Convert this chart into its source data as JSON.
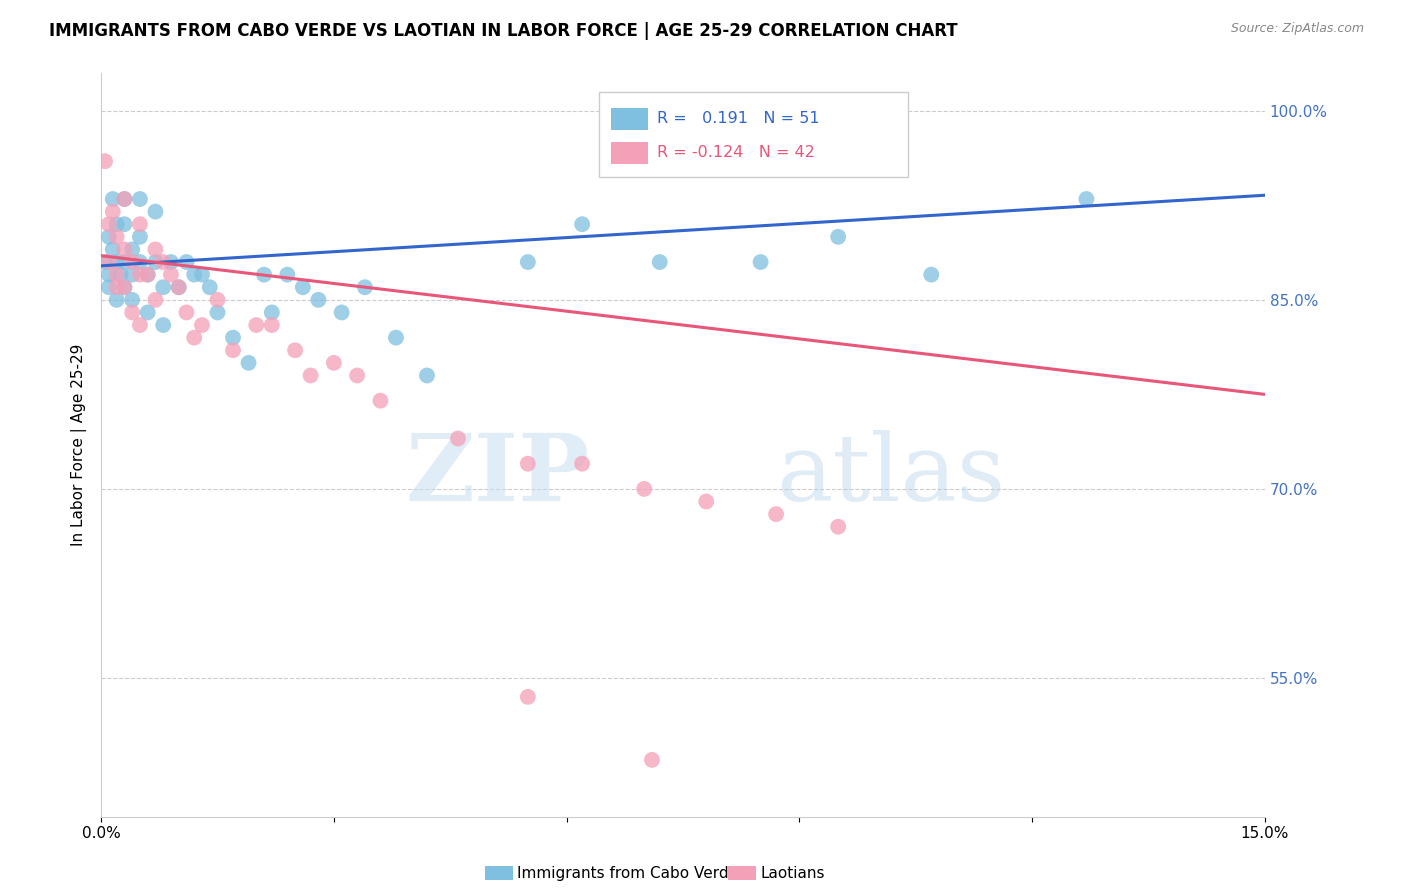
{
  "title": "IMMIGRANTS FROM CABO VERDE VS LAOTIAN IN LABOR FORCE | AGE 25-29 CORRELATION CHART",
  "source": "Source: ZipAtlas.com",
  "ylabel": "In Labor Force | Age 25-29",
  "xlim": [
    0.0,
    0.15
  ],
  "ylim": [
    0.44,
    1.03
  ],
  "xtick_positions": [
    0.0,
    0.03,
    0.06,
    0.09,
    0.12,
    0.15
  ],
  "xtick_labels": [
    "0.0%",
    "",
    "",
    "",
    "",
    "15.0%"
  ],
  "yticks_right": [
    0.55,
    0.7,
    0.85,
    1.0
  ],
  "ytick_labels_right": [
    "55.0%",
    "70.0%",
    "85.0%",
    "100.0%"
  ],
  "legend_blue_R": "0.191",
  "legend_blue_N": "51",
  "legend_pink_R": "-0.124",
  "legend_pink_N": "42",
  "label_blue": "Immigrants from Cabo Verde",
  "label_pink": "Laotians",
  "blue_color": "#7fbfdf",
  "pink_color": "#f4a0b8",
  "blue_line_color": "#3366cc",
  "pink_line_color": "#e8567a",
  "watermark_zip": "ZIP",
  "watermark_atlas": "atlas",
  "cabo_verde_x": [
    0.0005,
    0.001,
    0.001,
    0.001,
    0.0015,
    0.0015,
    0.002,
    0.002,
    0.002,
    0.0025,
    0.003,
    0.003,
    0.003,
    0.003,
    0.004,
    0.004,
    0.004,
    0.005,
    0.005,
    0.005,
    0.006,
    0.006,
    0.007,
    0.007,
    0.008,
    0.008,
    0.009,
    0.01,
    0.011,
    0.012,
    0.013,
    0.014,
    0.015,
    0.017,
    0.019,
    0.021,
    0.022,
    0.024,
    0.026,
    0.028,
    0.031,
    0.034,
    0.038,
    0.042,
    0.055,
    0.062,
    0.072,
    0.085,
    0.095,
    0.107,
    0.127
  ],
  "cabo_verde_y": [
    0.88,
    0.9,
    0.87,
    0.86,
    0.93,
    0.89,
    0.91,
    0.88,
    0.85,
    0.87,
    0.93,
    0.91,
    0.88,
    0.86,
    0.89,
    0.87,
    0.85,
    0.93,
    0.9,
    0.88,
    0.87,
    0.84,
    0.92,
    0.88,
    0.86,
    0.83,
    0.88,
    0.86,
    0.88,
    0.87,
    0.87,
    0.86,
    0.84,
    0.82,
    0.8,
    0.87,
    0.84,
    0.87,
    0.86,
    0.85,
    0.84,
    0.86,
    0.82,
    0.79,
    0.88,
    0.91,
    0.88,
    0.88,
    0.9,
    0.87,
    0.93
  ],
  "laotian_x": [
    0.0005,
    0.001,
    0.001,
    0.0015,
    0.002,
    0.002,
    0.002,
    0.003,
    0.003,
    0.003,
    0.004,
    0.004,
    0.005,
    0.005,
    0.005,
    0.006,
    0.007,
    0.007,
    0.008,
    0.009,
    0.01,
    0.011,
    0.012,
    0.013,
    0.015,
    0.017,
    0.02,
    0.022,
    0.025,
    0.027,
    0.03,
    0.033,
    0.036,
    0.046,
    0.055,
    0.062,
    0.07,
    0.078,
    0.087,
    0.095,
    0.055,
    0.071
  ],
  "laotian_y": [
    0.96,
    0.91,
    0.88,
    0.92,
    0.9,
    0.87,
    0.86,
    0.93,
    0.89,
    0.86,
    0.88,
    0.84,
    0.91,
    0.87,
    0.83,
    0.87,
    0.89,
    0.85,
    0.88,
    0.87,
    0.86,
    0.84,
    0.82,
    0.83,
    0.85,
    0.81,
    0.83,
    0.83,
    0.81,
    0.79,
    0.8,
    0.79,
    0.77,
    0.74,
    0.72,
    0.72,
    0.7,
    0.69,
    0.68,
    0.67,
    0.535,
    0.485
  ],
  "blue_trendline_x0": 0.0,
  "blue_trendline_y0": 0.877,
  "blue_trendline_x1": 0.15,
  "blue_trendline_y1": 0.933,
  "pink_trendline_x0": 0.0,
  "pink_trendline_y0": 0.885,
  "pink_trendline_x1": 0.15,
  "pink_trendline_y1": 0.775
}
